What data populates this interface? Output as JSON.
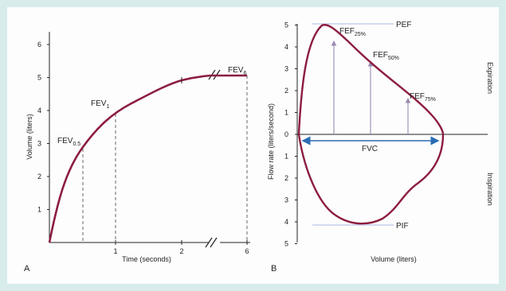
{
  "colors": {
    "curve": "#8c1d3f",
    "border": "#d8ecec",
    "guide": "#bcc5ea",
    "arrow": "#9a8ab0",
    "fvc_arrow": "#2a6db5",
    "axis": "#222222"
  },
  "chart_data": [
    {
      "panel": "A",
      "type": "line",
      "xlabel": "Time (seconds)",
      "ylabel": "Volume (liters)",
      "x_ticks": [
        "1",
        "2",
        "6"
      ],
      "y_ticks": [
        "1",
        "2",
        "3",
        "4",
        "5",
        "6"
      ],
      "ylim": [
        0,
        6
      ],
      "series": [
        {
          "x": [
            0,
            0.1,
            0.25,
            0.5,
            0.75,
            1,
            1.25,
            1.5,
            1.75,
            2,
            2.25,
            2.5,
            6
          ],
          "y": [
            0,
            0.9,
            1.9,
            2.85,
            3.45,
            3.9,
            4.25,
            4.5,
            4.7,
            4.85,
            4.95,
            5.02,
            5.05
          ]
        }
      ],
      "annotations": [
        {
          "label": "FEV",
          "sub": "0.5",
          "x": 0.5,
          "y": 2.85
        },
        {
          "label": "FEV",
          "sub": "1",
          "x": 1,
          "y": 3.9
        },
        {
          "label": "FEV",
          "sub": "6",
          "x": 6,
          "y": 5.05
        }
      ]
    },
    {
      "panel": "B",
      "type": "line",
      "xlabel": "Volume (liters)",
      "ylabel": "Flow rate (liters/second)",
      "y_ticks_expiration": [
        "1",
        "2",
        "3",
        "4",
        "5"
      ],
      "y_ticks_inspiration": [
        "1",
        "2",
        "3",
        "4",
        "5"
      ],
      "zero_label": "0",
      "region_labels": {
        "top": "Expiration",
        "bottom": "Inspiration"
      },
      "annotations": {
        "pef": "PEF",
        "pif": "PIF",
        "fvc": "FVC",
        "fef25": {
          "label": "FEF",
          "sub": "25%"
        },
        "fef50": {
          "label": "FEF",
          "sub": "50%"
        },
        "fef75": {
          "label": "FEF",
          "sub": "75%"
        }
      }
    }
  ]
}
